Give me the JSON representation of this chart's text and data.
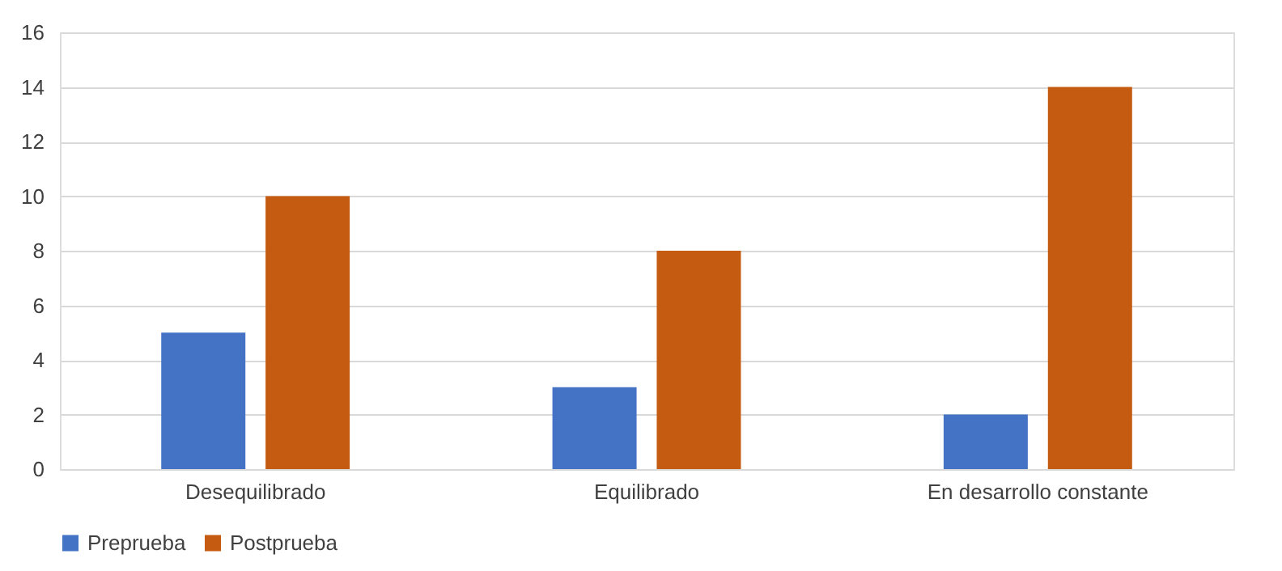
{
  "chart_data": {
    "type": "bar",
    "categories": [
      "Desequilibrado",
      "Equilibrado",
      "En desarrollo constante"
    ],
    "series": [
      {
        "name": "Preprueba",
        "color": "#4472c4",
        "values": [
          5,
          3,
          2
        ]
      },
      {
        "name": "Postprueba",
        "color": "#c55a11",
        "values": [
          10,
          8,
          14
        ]
      }
    ],
    "ylim": [
      0,
      16
    ],
    "yticks": [
      0,
      2,
      4,
      6,
      8,
      10,
      12,
      14,
      16
    ],
    "grid": "y",
    "legend": "bottom"
  }
}
